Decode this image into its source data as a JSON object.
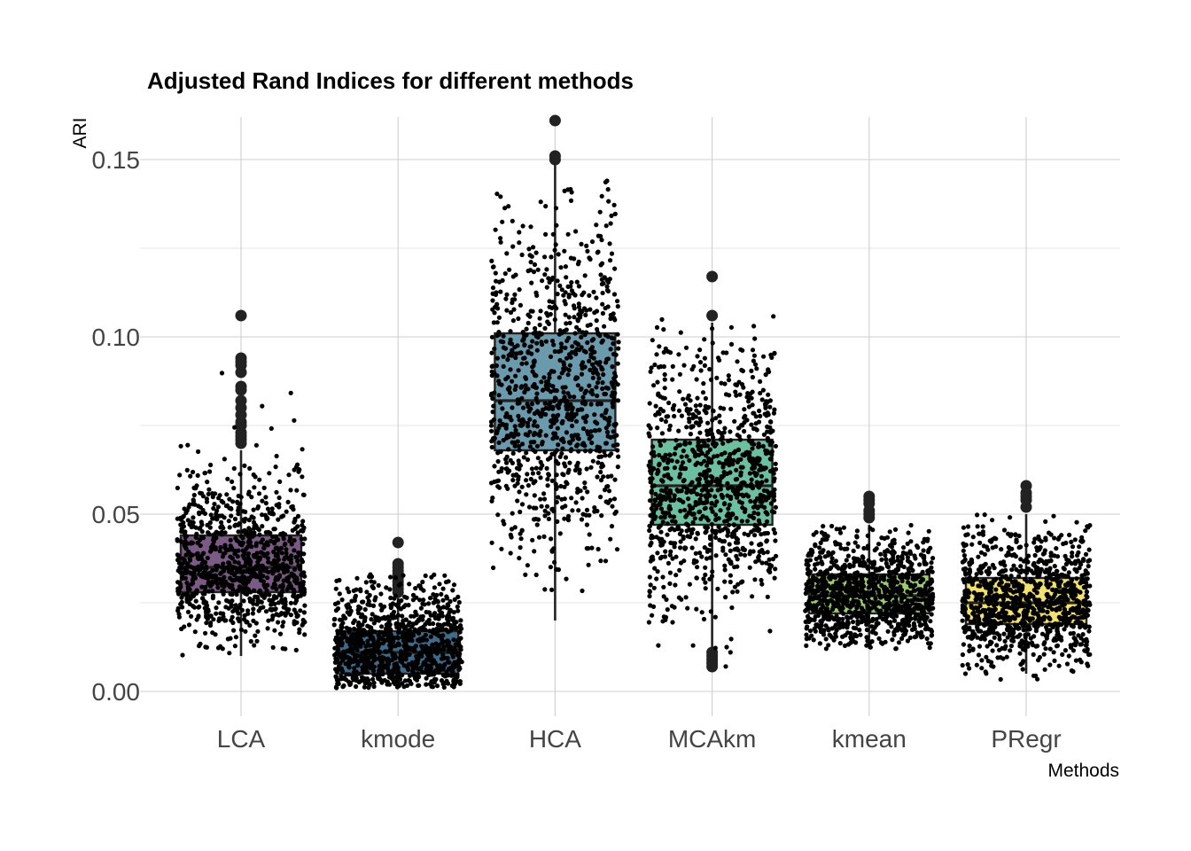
{
  "chart_data": {
    "type": "boxplot",
    "title": "Adjusted Rand Indices for different methods",
    "xlabel": "Methods",
    "ylabel": "ARI",
    "ylim": [
      -0.007,
      0.162
    ],
    "y_ticks": [
      0.0,
      0.05,
      0.1,
      0.15
    ],
    "y_tick_labels": [
      "0.00",
      "0.05",
      "0.10",
      "0.15"
    ],
    "grid": true,
    "legend": "none",
    "jitter_points_per_group": 1000,
    "categories": [
      "LCA",
      "kmode",
      "HCA",
      "MCAkm",
      "kmean",
      "PRegr"
    ],
    "series": [
      {
        "name": "LCA",
        "color": "#7c5a86",
        "q1": 0.028,
        "median": 0.035,
        "q3": 0.044,
        "whisker_low": 0.01,
        "whisker_high": 0.068,
        "jitter_min": 0.01,
        "jitter_max": 0.09,
        "outliers": [
          0.07,
          0.071,
          0.072,
          0.073,
          0.075,
          0.076,
          0.078,
          0.08,
          0.082,
          0.085,
          0.086,
          0.09,
          0.092,
          0.093,
          0.094,
          0.106
        ]
      },
      {
        "name": "kmode",
        "color": "#3f6b8a",
        "q1": 0.005,
        "median": 0.011,
        "q3": 0.017,
        "whisker_low": 0.001,
        "whisker_high": 0.027,
        "jitter_min": 0.001,
        "jitter_max": 0.033,
        "outliers": [
          0.028,
          0.029,
          0.03,
          0.031,
          0.032,
          0.033,
          0.034,
          0.035,
          0.036,
          0.042
        ]
      },
      {
        "name": "HCA",
        "color": "#6b9aad",
        "q1": 0.068,
        "median": 0.082,
        "q3": 0.101,
        "whisker_low": 0.02,
        "whisker_high": 0.149,
        "jitter_min": 0.02,
        "jitter_max": 0.145,
        "outliers": [
          0.15,
          0.151,
          0.161
        ]
      },
      {
        "name": "MCAkm",
        "color": "#6cc0a0",
        "q1": 0.047,
        "median": 0.058,
        "q3": 0.071,
        "whisker_low": 0.012,
        "whisker_high": 0.104,
        "jitter_min": 0.007,
        "jitter_max": 0.106,
        "outliers": [
          0.007,
          0.008,
          0.009,
          0.01,
          0.011,
          0.106,
          0.117
        ]
      },
      {
        "name": "kmean",
        "color": "#9acd72",
        "q1": 0.022,
        "median": 0.027,
        "q3": 0.033,
        "whisker_low": 0.012,
        "whisker_high": 0.047,
        "jitter_min": 0.012,
        "jitter_max": 0.047,
        "outliers": [
          0.049,
          0.05,
          0.051,
          0.053,
          0.054,
          0.055
        ]
      },
      {
        "name": "PRegr",
        "color": "#f3e06f",
        "q1": 0.019,
        "median": 0.025,
        "q3": 0.032,
        "whisker_low": 0.005,
        "whisker_high": 0.05,
        "jitter_min": 0.003,
        "jitter_max": 0.05,
        "outliers": [
          0.052,
          0.054,
          0.055,
          0.056,
          0.058
        ]
      }
    ]
  }
}
